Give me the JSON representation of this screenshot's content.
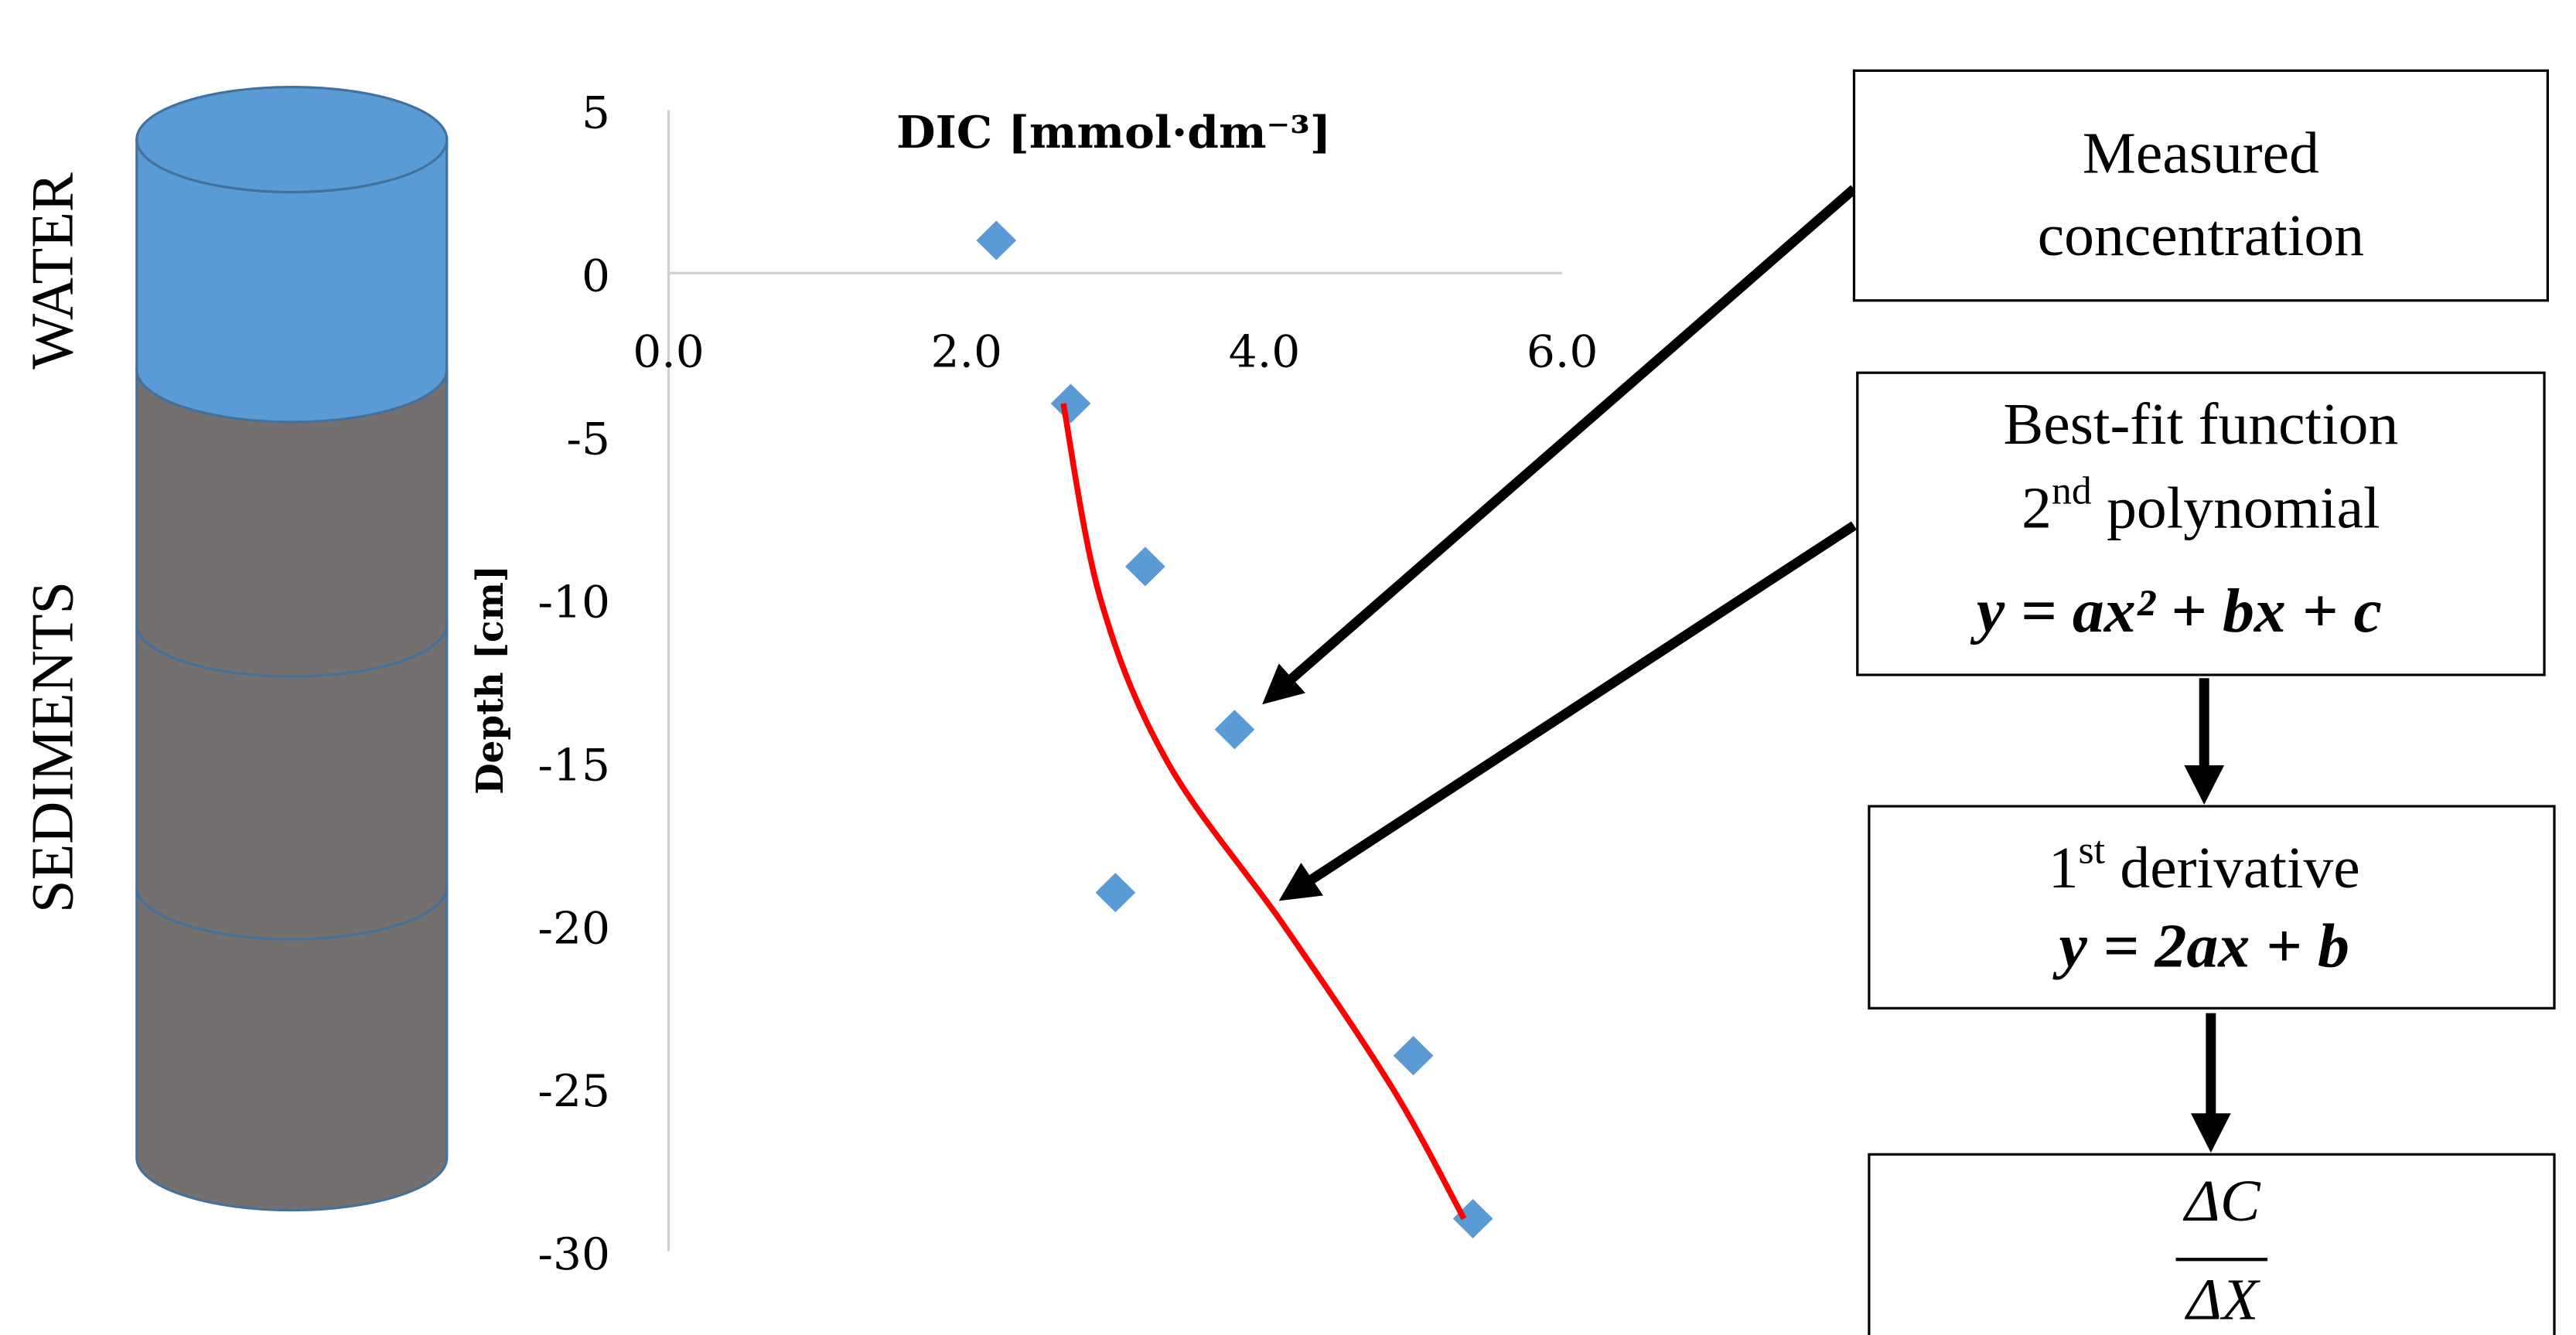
{
  "chart_data": {
    "type": "scatter",
    "x_label": "DIC [mmol·dm⁻³]",
    "y_label": "Depth [cm]",
    "xlim": [
      0,
      6
    ],
    "ylim": [
      -30,
      5
    ],
    "xticks": [
      {
        "value": 0,
        "label": "0.0"
      },
      {
        "value": 2,
        "label": "2.0"
      },
      {
        "value": 4,
        "label": "4.0"
      },
      {
        "value": 6,
        "label": "6.0"
      }
    ],
    "yticks": [
      5,
      0,
      -5,
      -10,
      -15,
      -20,
      -25,
      -30
    ],
    "series": [
      {
        "color": "#5b9bd5",
        "marker": "diamond",
        "x": [
          2.2,
          2.7,
          3.2,
          3.8,
          3.0,
          5.0,
          5.4
        ],
        "values": [
          1,
          -4,
          -9,
          -14,
          -19,
          -24,
          -29
        ]
      },
      {
        "color": "#ff0000",
        "marker": "line",
        "x": [
          2.65,
          2.9,
          3.35,
          4.13,
          4.86,
          5.34
        ],
        "values": [
          -4,
          -10,
          -15,
          -20,
          -25,
          -29
        ]
      }
    ]
  },
  "diagram": {
    "column": {
      "water": "WATER",
      "sediments": "SEDIMENTS"
    },
    "boxes": [
      {
        "lines": [
          "Measured",
          "concentration"
        ]
      },
      {
        "line1": "Best-fit function",
        "line2": {
          "base": "2",
          "sup": "nd",
          "rest": " polynomial"
        },
        "equation": "y = ax² + bx + c"
      },
      {
        "line1": {
          "base": "1",
          "sup": "st",
          "rest": " derivative"
        },
        "equation": "y = 2ax + b"
      },
      {
        "numerator": "ΔC",
        "denominator": "ΔX"
      }
    ]
  }
}
